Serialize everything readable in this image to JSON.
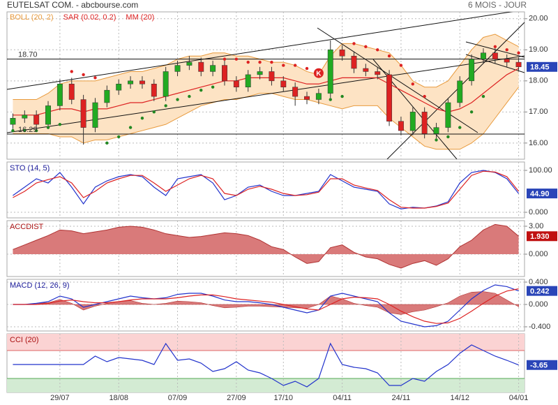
{
  "chart_data": [
    {
      "type": "candlestick",
      "title": "EUTELSAT COM. - abcbourse.com",
      "subtitle": "6 MOIS - JOUR",
      "ylim": [
        15.48,
        20.22
      ],
      "yticks": [
        {
          "value": 16,
          "label": "16.00"
        },
        {
          "value": 17,
          "label": "17.00"
        },
        {
          "value": 18,
          "label": "18.00"
        },
        {
          "value": 19,
          "label": "19.00"
        },
        {
          "value": 20,
          "label": "20.00"
        }
      ],
      "grid": true,
      "open": [
        16.6,
        16.8,
        16.9,
        16.6,
        17.2,
        17.9,
        17.4,
        16.5,
        17.3,
        17.7,
        17.9,
        18.0,
        17.9,
        17.5,
        18.3,
        18.5,
        18.6,
        18.3,
        18.5,
        18.0,
        17.8,
        18.2,
        18.3,
        18.0,
        17.8,
        17.5,
        17.4,
        17.6,
        19.0,
        18.8,
        18.4,
        18.3,
        18.2,
        16.7,
        16.4,
        17.0,
        16.3,
        16.5,
        17.3,
        18.0,
        18.7,
        18.9,
        18.7,
        18.6
      ],
      "high": [
        16.95,
        17.05,
        17.05,
        17.35,
        18.05,
        18.1,
        17.55,
        17.45,
        17.85,
        18.05,
        18.15,
        18.15,
        18.05,
        18.45,
        18.65,
        18.8,
        18.75,
        18.65,
        18.65,
        18.15,
        18.35,
        18.45,
        18.45,
        18.15,
        17.95,
        17.65,
        17.75,
        19.3,
        19.15,
        18.95,
        18.55,
        18.45,
        18.35,
        16.85,
        17.15,
        17.15,
        16.65,
        17.45,
        18.15,
        18.85,
        19.05,
        19.05,
        18.85,
        18.75
      ],
      "low": [
        16.45,
        16.65,
        16.45,
        16.45,
        17.05,
        17.25,
        15.95,
        16.35,
        17.15,
        17.55,
        17.75,
        17.75,
        17.35,
        17.35,
        18.15,
        18.35,
        18.15,
        18.15,
        17.85,
        17.65,
        17.65,
        18.05,
        17.85,
        17.65,
        17.2,
        17.25,
        17.25,
        17.45,
        18.65,
        18.25,
        18.15,
        18.05,
        16.55,
        16.25,
        16.25,
        16.15,
        16.15,
        16.35,
        17.15,
        17.85,
        18.55,
        18.55,
        18.45,
        18.3
      ],
      "close": [
        16.8,
        16.9,
        16.6,
        17.2,
        17.9,
        17.4,
        16.5,
        17.3,
        17.7,
        17.9,
        18.0,
        17.9,
        17.5,
        18.3,
        18.5,
        18.6,
        18.3,
        18.5,
        18.0,
        17.8,
        18.2,
        18.3,
        18.0,
        17.8,
        17.5,
        17.4,
        17.6,
        19.0,
        18.8,
        18.4,
        18.3,
        18.2,
        16.7,
        16.4,
        17.0,
        16.3,
        16.5,
        17.3,
        18.0,
        18.7,
        18.9,
        18.7,
        18.6,
        18.45
      ],
      "up_color": "#22aa22",
      "down_color": "#dd2222",
      "bollinger": {
        "name": "BOLL (20, 2)",
        "color": "#e89a3c",
        "fill": "#fde3c4",
        "upper": [
          17.4,
          17.4,
          17.4,
          17.6,
          17.9,
          18.0,
          18.0,
          18.0,
          18.1,
          18.2,
          18.3,
          18.3,
          18.4,
          18.5,
          18.7,
          18.8,
          18.8,
          18.9,
          18.9,
          18.8,
          18.8,
          18.7,
          18.6,
          18.6,
          18.5,
          18.3,
          18.2,
          18.8,
          19.2,
          19.2,
          19.1,
          19.0,
          18.9,
          18.5,
          18.0,
          17.8,
          17.8,
          18.0,
          18.5,
          19.0,
          19.4,
          19.5,
          19.3,
          19.1
        ],
        "lower": [
          16.3,
          16.3,
          16.3,
          16.3,
          16.2,
          16.2,
          16.0,
          16.1,
          16.1,
          16.2,
          16.3,
          16.4,
          16.5,
          16.6,
          16.8,
          17.0,
          17.2,
          17.3,
          17.4,
          17.4,
          17.5,
          17.6,
          17.6,
          17.5,
          17.4,
          17.4,
          17.3,
          17.2,
          17.1,
          17.2,
          17.2,
          17.2,
          16.8,
          16.5,
          16.2,
          15.9,
          15.8,
          15.8,
          15.8,
          16.0,
          16.3,
          16.8,
          17.3,
          17.8
        ]
      },
      "sar": {
        "name": "SAR (0.02, 0.2)",
        "color": "#dd2222",
        "below_color": "#228822",
        "values": [
          16.4,
          16.4,
          16.4,
          16.5,
          16.6,
          18.3,
          18.2,
          18.1,
          16.0,
          16.2,
          16.5,
          16.8,
          17.0,
          17.2,
          17.4,
          17.5,
          17.7,
          17.8,
          18.7,
          18.7,
          18.6,
          18.6,
          18.6,
          18.5,
          18.5,
          18.4,
          18.3,
          17.4,
          17.5,
          19.2,
          19.1,
          19.0,
          18.8,
          18.5,
          17.9,
          17.5,
          16.1,
          16.2,
          16.5,
          17.0,
          17.5,
          19.1,
          19.0,
          18.9
        ]
      },
      "mm": {
        "name": "MM (20)",
        "color": "#dd2222",
        "values": [
          16.9,
          16.9,
          16.9,
          17.0,
          17.1,
          17.1,
          17.0,
          17.1,
          17.1,
          17.2,
          17.3,
          17.3,
          17.4,
          17.5,
          17.6,
          17.7,
          17.8,
          17.9,
          18.0,
          18.0,
          18.1,
          18.1,
          18.1,
          18.1,
          18.0,
          17.9,
          17.9,
          18.0,
          18.1,
          18.1,
          18.1,
          18.1,
          17.9,
          17.7,
          17.5,
          17.3,
          17.1,
          17.0,
          17.1,
          17.3,
          17.6,
          17.9,
          18.2,
          18.4
        ]
      },
      "levels": [
        {
          "value": 18.7,
          "label": "18.70"
        },
        {
          "value": 16.29,
          "label": "16.29"
        }
      ],
      "annotation": {
        "text": "K",
        "x": 26,
        "y": 18.25,
        "color": "#dd2222"
      },
      "last_label": "18.45",
      "last_color": "#2a45b8"
    },
    {
      "type": "line",
      "title": "STO (14, 5)",
      "title_color": "#1a1a99",
      "ylim": [
        -13.3,
        120
      ],
      "yticks": [
        {
          "value": 100,
          "label": "100.00"
        },
        {
          "value": 0,
          "label": "0.000"
        }
      ],
      "grid": true,
      "series": [
        {
          "color": "#2233cc",
          "values": [
            40,
            60,
            80,
            70,
            95,
            60,
            20,
            60,
            75,
            85,
            90,
            85,
            60,
            40,
            80,
            85,
            90,
            70,
            30,
            40,
            60,
            65,
            50,
            40,
            40,
            45,
            50,
            90,
            75,
            60,
            55,
            50,
            20,
            8,
            12,
            10,
            15,
            25,
            70,
            95,
            100,
            95,
            80,
            44.9
          ]
        },
        {
          "color": "#dd2222",
          "values": [
            35,
            50,
            70,
            78,
            85,
            70,
            35,
            50,
            70,
            80,
            88,
            88,
            70,
            50,
            65,
            80,
            88,
            80,
            45,
            40,
            55,
            62,
            55,
            45,
            40,
            42,
            48,
            80,
            80,
            65,
            58,
            52,
            30,
            12,
            10,
            10,
            14,
            22,
            55,
            88,
            98,
            96,
            85,
            50
          ]
        }
      ],
      "last_label": "44.90",
      "last_color": "#2a45b8"
    },
    {
      "type": "area",
      "title": "ACCDIST",
      "title_color": "#aa1111",
      "color": "#d97a7a",
      "line_color": "#b03333",
      "ylim": [
        -2.4,
        3.6
      ],
      "yticks": [
        {
          "value": 3,
          "label": "3.00"
        },
        {
          "value": 0,
          "label": "0.000"
        }
      ],
      "grid": true,
      "values": [
        0.5,
        1.0,
        1.5,
        2.0,
        2.6,
        2.5,
        2.2,
        2.4,
        2.6,
        2.9,
        3.0,
        2.9,
        2.6,
        2.2,
        2.0,
        1.8,
        1.9,
        2.1,
        2.3,
        2.2,
        2.0,
        1.5,
        0.8,
        0.5,
        -0.3,
        -1.0,
        -0.8,
        0.7,
        1.0,
        0.2,
        -0.3,
        -0.5,
        -1.1,
        -1.5,
        -1.0,
        -0.7,
        -1.2,
        -0.5,
        0.8,
        1.5,
        2.6,
        3.2,
        3.0,
        1.93
      ],
      "last_label": "1.930",
      "last_color": "#c01010"
    },
    {
      "type": "line",
      "title": "MACD (12, 26, 9)",
      "title_color": "#1a1a99",
      "ylim": [
        -0.475,
        0.45
      ],
      "yticks": [
        {
          "value": 0.4,
          "label": "0.400"
        },
        {
          "value": 0,
          "label": "0.000"
        },
        {
          "value": -0.4,
          "label": "-0.400"
        }
      ],
      "grid": true,
      "histogram": {
        "color": "#d97a7a",
        "values": [
          0,
          0,
          0.02,
          0.03,
          0.09,
          0.02,
          -0.1,
          -0.03,
          0.02,
          0.05,
          0.07,
          0.02,
          0,
          0.02,
          0.06,
          0.05,
          0.03,
          -0.02,
          -0.06,
          -0.05,
          -0.03,
          -0.03,
          -0.04,
          -0.05,
          -0.06,
          -0.07,
          0,
          0.15,
          0.1,
          0.02,
          -0.02,
          -0.05,
          -0.15,
          -0.18,
          -0.13,
          -0.1,
          -0.04,
          0.03,
          0.15,
          0.22,
          0.23,
          0.2,
          0.08,
          -0.04
        ]
      },
      "series": [
        {
          "color": "#2233cc",
          "values": [
            0.0,
            0.0,
            0.02,
            0.05,
            0.15,
            0.1,
            -0.05,
            0.0,
            0.05,
            0.1,
            0.15,
            0.12,
            0.1,
            0.12,
            0.18,
            0.2,
            0.2,
            0.15,
            0.08,
            0.05,
            0.05,
            0.03,
            0.0,
            -0.05,
            -0.1,
            -0.15,
            -0.1,
            0.15,
            0.2,
            0.15,
            0.1,
            0.05,
            -0.15,
            -0.3,
            -0.35,
            -0.4,
            -0.38,
            -0.3,
            -0.1,
            0.1,
            0.25,
            0.35,
            0.32,
            0.242
          ]
        },
        {
          "color": "#dd2222",
          "values": [
            0.0,
            0.0,
            0.0,
            0.02,
            0.06,
            0.08,
            0.05,
            0.03,
            0.03,
            0.05,
            0.08,
            0.1,
            0.1,
            0.1,
            0.12,
            0.15,
            0.17,
            0.17,
            0.14,
            0.1,
            0.08,
            0.06,
            0.04,
            0.0,
            -0.04,
            -0.08,
            -0.1,
            0.0,
            0.1,
            0.13,
            0.12,
            0.1,
            0.0,
            -0.12,
            -0.22,
            -0.3,
            -0.34,
            -0.33,
            -0.25,
            -0.12,
            0.02,
            0.15,
            0.24,
            0.28
          ]
        }
      ],
      "last_label": "0.242",
      "last_color": "#2a45b8"
    },
    {
      "type": "line",
      "title": "CCI (20)",
      "title_color": "#aa1111",
      "ylim": [
        -200,
        220
      ],
      "grid": true,
      "zones": [
        {
          "value": 100,
          "side": "above",
          "color": "#fbd3d3",
          "line": "#dd6666"
        },
        {
          "value": -100,
          "side": "below",
          "color": "#d3ebd3",
          "line": "#55aa55"
        }
      ],
      "series": [
        {
          "color": "#2233cc",
          "values": [
            0,
            0,
            0,
            0,
            0,
            0,
            0,
            60,
            20,
            50,
            40,
            30,
            0,
            150,
            30,
            40,
            10,
            -50,
            -30,
            20,
            -40,
            -60,
            -100,
            -150,
            -120,
            -160,
            -100,
            150,
            0,
            -20,
            -30,
            -60,
            -150,
            -150,
            -100,
            -120,
            -50,
            0,
            80,
            140,
            100,
            60,
            30,
            -3.65
          ]
        }
      ],
      "categories": [
        null,
        null,
        null,
        null,
        "29/07",
        null,
        null,
        null,
        null,
        "18/08",
        null,
        null,
        null,
        null,
        "07/09",
        null,
        null,
        null,
        null,
        "27/09",
        null,
        null,
        null,
        "17/10",
        null,
        null,
        null,
        null,
        "04/11",
        null,
        null,
        null,
        null,
        "24/11",
        null,
        null,
        null,
        null,
        "14/12",
        null,
        null,
        null,
        null,
        "04/01"
      ],
      "last_label": "-3.65",
      "last_color": "#2a45b8"
    }
  ]
}
